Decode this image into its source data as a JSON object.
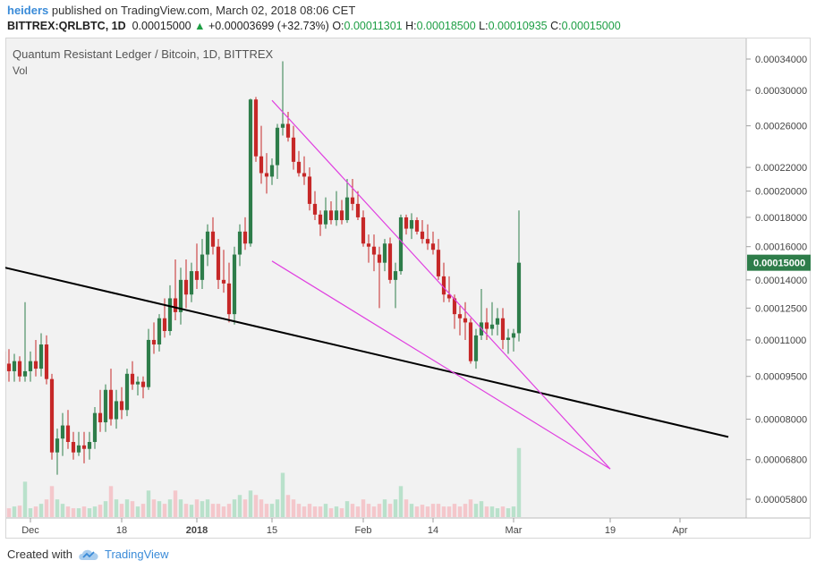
{
  "header": {
    "author": "heiders",
    "published_text": " published on TradingView.com, March 02, 2018 08:06 CET",
    "symbol": "BITTREX:QRLBTC, 1D",
    "last": "0.00015000",
    "arrow": "▲",
    "change": "+0.00003699 (+32.73%)",
    "o_label": "O:",
    "o_value": "0.00011301",
    "h_label": "H:",
    "h_value": "0.00018500",
    "l_label": "L:",
    "l_value": "0.00010935",
    "c_label": "C:",
    "c_value": "0.00015000"
  },
  "chart_data": {
    "type": "candlestick",
    "title": "Quantum Resistant Ledger / Bitcoin, 1D, BITTREX",
    "volume_label": "Vol",
    "y_ticks": [
      "0.00034000",
      "0.00030000",
      "0.00026000",
      "0.00022000",
      "0.00020000",
      "0.00018000",
      "0.00016000",
      "0.00014000",
      "0.00012500",
      "0.00011000",
      "0.00009500",
      "0.00008000",
      "0.00006800",
      "0.00005800"
    ],
    "last_price_label": "0.00015000",
    "x_ticks": [
      "Dec",
      "18",
      "2018",
      "15",
      "Feb",
      "14",
      "Mar",
      "19",
      "Apr"
    ],
    "x_dates": [
      "2017-12-01",
      "2017-12-18",
      "2018-01-01",
      "2018-01-15",
      "2018-02-01",
      "2018-02-14",
      "2018-03-01",
      "2018-03-19",
      "2018-04-01"
    ],
    "colors": {
      "up": "#2e7d4a",
      "down": "#c62828",
      "vol_up": "#b9e1cb",
      "vol_down": "#f4c7cb",
      "wedge": "#e040e0",
      "support": "#000000",
      "last_price_bg": "#2e7d4a"
    },
    "drawings": [
      {
        "name": "support-line",
        "points": [
          [
            "2017-11-25",
            0.000148
          ],
          [
            "2018-04-10",
            7.45e-05
          ]
        ]
      },
      {
        "name": "wedge-upper",
        "points": [
          [
            "2018-01-15",
            0.000288
          ],
          [
            "2018-03-19",
            6.55e-05
          ]
        ]
      },
      {
        "name": "wedge-lower",
        "points": [
          [
            "2018-01-15",
            0.000151
          ],
          [
            "2018-03-19",
            6.55e-05
          ]
        ]
      }
    ],
    "candles": [
      [
        "2017-11-24",
        0.000128,
        0.000128,
        0.00011,
        0.000115,
        25
      ],
      [
        "2017-11-25",
        0.000115,
        0.00012,
        0.0001,
        0.000105,
        15
      ],
      [
        "2017-11-26",
        0.000105,
        0.000112,
        9.7e-05,
        0.0001,
        12
      ],
      [
        "2017-11-27",
        0.0001,
        0.000106,
        9.3e-05,
        9.7e-05,
        10
      ],
      [
        "2017-11-28",
        9.7e-05,
        0.000104,
        9.3e-05,
        0.000101,
        12
      ],
      [
        "2017-11-29",
        0.000101,
        0.000103,
        9.3e-05,
        9.5e-05,
        13
      ],
      [
        "2017-11-30",
        9.5e-05,
        0.000128,
        9.3e-05,
        9.7e-05,
        40
      ],
      [
        "2017-12-01",
        9.7e-05,
        0.000105,
        9.3e-05,
        0.000101,
        10
      ],
      [
        "2017-12-02",
        0.000101,
        0.00011,
        9.5e-05,
        9.8e-05,
        12
      ],
      [
        "2017-12-03",
        9.8e-05,
        0.000113,
        9.5e-05,
        0.000108,
        15
      ],
      [
        "2017-12-04",
        0.000108,
        0.000112,
        9.2e-05,
        9.4e-05,
        20
      ],
      [
        "2017-12-05",
        9.4e-05,
        9.6e-05,
        6.8e-05,
        7e-05,
        35
      ],
      [
        "2017-12-06",
        7e-05,
        7.7e-05,
        6.4e-05,
        7.4e-05,
        20
      ],
      [
        "2017-12-07",
        7.4e-05,
        8.2e-05,
        6.9e-05,
        7.8e-05,
        15
      ],
      [
        "2017-12-08",
        7.8e-05,
        8.3e-05,
        7.1e-05,
        7.3e-05,
        12
      ],
      [
        "2017-12-09",
        7.3e-05,
        7.6e-05,
        6.8e-05,
        7e-05,
        10
      ],
      [
        "2017-12-10",
        7e-05,
        7.6e-05,
        6.9e-05,
        7.2e-05,
        10
      ],
      [
        "2017-12-11",
        7.2e-05,
        7.6e-05,
        6.7e-05,
        7.1e-05,
        12
      ],
      [
        "2017-12-12",
        7.1e-05,
        7.6e-05,
        6.8e-05,
        7.3e-05,
        10
      ],
      [
        "2017-12-13",
        7.3e-05,
        8.4e-05,
        7.1e-05,
        8.2e-05,
        12
      ],
      [
        "2017-12-14",
        8.2e-05,
        9e-05,
        7.6e-05,
        7.9e-05,
        14
      ],
      [
        "2017-12-15",
        7.9e-05,
        9.2e-05,
        7.6e-05,
        9e-05,
        18
      ],
      [
        "2017-12-16",
        9e-05,
        9.8e-05,
        7.8e-05,
        8e-05,
        35
      ],
      [
        "2017-12-17",
        8e-05,
        9e-05,
        7.7e-05,
        8.6e-05,
        20
      ],
      [
        "2017-12-18",
        8.6e-05,
        9.1e-05,
        8e-05,
        8.3e-05,
        15
      ],
      [
        "2017-12-19",
        8.3e-05,
        9.8e-05,
        8.1e-05,
        9.6e-05,
        20
      ],
      [
        "2017-12-20",
        9.6e-05,
        0.000101,
        9e-05,
        9.2e-05,
        18
      ],
      [
        "2017-12-21",
        9.2e-05,
        9.5e-05,
        8.8e-05,
        9.3e-05,
        12
      ],
      [
        "2017-12-22",
        9.3e-05,
        9.5e-05,
        8.7e-05,
        9.1e-05,
        15
      ],
      [
        "2017-12-23",
        9.1e-05,
        0.000115,
        9e-05,
        0.00011,
        30
      ],
      [
        "2017-12-24",
        0.00011,
        0.000118,
        0.000104,
        0.000108,
        20
      ],
      [
        "2017-12-25",
        0.000108,
        0.000122,
        0.000105,
        0.00012,
        18
      ],
      [
        "2017-12-26",
        0.00012,
        0.00013,
        0.000111,
        0.000114,
        15
      ],
      [
        "2017-12-27",
        0.000114,
        0.000137,
        0.000112,
        0.00013,
        20
      ],
      [
        "2017-12-28",
        0.00013,
        0.000152,
        0.000119,
        0.000123,
        30
      ],
      [
        "2017-12-29",
        0.000123,
        0.000147,
        0.000117,
        0.00014,
        20
      ],
      [
        "2017-12-30",
        0.00014,
        0.000152,
        0.000125,
        0.000132,
        15
      ],
      [
        "2017-12-31",
        0.000132,
        0.00015,
        0.000128,
        0.000145,
        14
      ],
      [
        "2018-01-01",
        0.000145,
        0.000162,
        0.000135,
        0.00014,
        20
      ],
      [
        "2018-01-02",
        0.00014,
        0.000165,
        0.000135,
        0.000155,
        18
      ],
      [
        "2018-01-03",
        0.000155,
        0.000175,
        0.000148,
        0.00017,
        20
      ],
      [
        "2018-01-04",
        0.00017,
        0.00018,
        0.000155,
        0.00016,
        15
      ],
      [
        "2018-01-05",
        0.00016,
        0.000165,
        0.000135,
        0.00014,
        15
      ],
      [
        "2018-01-06",
        0.00014,
        0.000158,
        0.000133,
        0.000138,
        12
      ],
      [
        "2018-01-07",
        0.000138,
        0.00015,
        0.000118,
        0.000122,
        15
      ],
      [
        "2018-01-08",
        0.000122,
        0.00016,
        0.000117,
        0.000155,
        20
      ],
      [
        "2018-01-09",
        0.000155,
        0.000175,
        0.000148,
        0.00017,
        25
      ],
      [
        "2018-01-10",
        0.00017,
        0.00018,
        0.000158,
        0.000162,
        20
      ],
      [
        "2018-01-11",
        0.000162,
        0.00029,
        0.00016,
        0.000289,
        30
      ],
      [
        "2018-01-12",
        0.000289,
        0.000292,
        0.000225,
        0.00023,
        25
      ],
      [
        "2018-01-13",
        0.00023,
        0.00026,
        0.000206,
        0.000215,
        20
      ],
      [
        "2018-01-14",
        0.000215,
        0.000233,
        0.000198,
        0.000212,
        15
      ],
      [
        "2018-01-15",
        0.000212,
        0.000228,
        0.000205,
        0.000222,
        15
      ],
      [
        "2018-01-16",
        0.000222,
        0.000262,
        0.00021,
        0.000258,
        20
      ],
      [
        "2018-01-17",
        0.000258,
        0.000337,
        0.00025,
        0.000262,
        50
      ],
      [
        "2018-01-18",
        0.000262,
        0.000275,
        0.000244,
        0.000248,
        25
      ],
      [
        "2018-01-19",
        0.000248,
        0.00026,
        0.000218,
        0.000225,
        20
      ],
      [
        "2018-01-20",
        0.000225,
        0.000235,
        0.000212,
        0.000215,
        15
      ],
      [
        "2018-01-21",
        0.000215,
        0.00023,
        0.000205,
        0.000212,
        12
      ],
      [
        "2018-01-22",
        0.000212,
        0.00022,
        0.000185,
        0.00019,
        15
      ],
      [
        "2018-01-23",
        0.00019,
        0.0002,
        0.000178,
        0.000182,
        12
      ],
      [
        "2018-01-24",
        0.000182,
        0.000185,
        0.000167,
        0.000175,
        12
      ],
      [
        "2018-01-25",
        0.000175,
        0.000195,
        0.000172,
        0.000185,
        15
      ],
      [
        "2018-01-26",
        0.000185,
        0.000192,
        0.000175,
        0.000178,
        10
      ],
      [
        "2018-01-27",
        0.000178,
        0.0002,
        0.000174,
        0.000185,
        12
      ],
      [
        "2018-01-28",
        0.000185,
        0.000193,
        0.000175,
        0.000178,
        10
      ],
      [
        "2018-01-29",
        0.000178,
        0.00021,
        0.000176,
        0.000195,
        18
      ],
      [
        "2018-01-30",
        0.000195,
        0.00021,
        0.000185,
        0.00019,
        15
      ],
      [
        "2018-01-31",
        0.00019,
        0.0002,
        0.000178,
        0.00018,
        12
      ],
      [
        "2018-02-01",
        0.00018,
        0.000185,
        0.00016,
        0.000162,
        20
      ],
      [
        "2018-02-02",
        0.000162,
        0.000168,
        0.00015,
        0.00016,
        15
      ],
      [
        "2018-02-03",
        0.00016,
        0.000168,
        0.000145,
        0.000155,
        12
      ],
      [
        "2018-02-04",
        0.000155,
        0.00016,
        0.000125,
        0.00015,
        15
      ],
      [
        "2018-02-05",
        0.00015,
        0.000165,
        0.000145,
        0.000162,
        20
      ],
      [
        "2018-02-06",
        0.000162,
        0.000166,
        0.000138,
        0.00014,
        15
      ],
      [
        "2018-02-07",
        0.00014,
        0.00015,
        0.000125,
        0.000145,
        20
      ],
      [
        "2018-02-08",
        0.000145,
        0.000182,
        0.000143,
        0.00018,
        35
      ],
      [
        "2018-02-09",
        0.00018,
        0.000182,
        0.000168,
        0.000172,
        20
      ],
      [
        "2018-02-10",
        0.000172,
        0.000183,
        0.000165,
        0.000178,
        15
      ],
      [
        "2018-02-11",
        0.000178,
        0.00018,
        0.000168,
        0.00017,
        12
      ],
      [
        "2018-02-12",
        0.00017,
        0.000178,
        0.000162,
        0.000165,
        14
      ],
      [
        "2018-02-13",
        0.000165,
        0.000175,
        0.000158,
        0.000162,
        12
      ],
      [
        "2018-02-14",
        0.000162,
        0.00017,
        0.000155,
        0.000158,
        15
      ],
      [
        "2018-02-15",
        0.000158,
        0.000165,
        0.00014,
        0.000142,
        15
      ],
      [
        "2018-02-16",
        0.000142,
        0.00015,
        0.000128,
        0.000132,
        12
      ],
      [
        "2018-02-17",
        0.000132,
        0.000142,
        0.000128,
        0.00013,
        12
      ],
      [
        "2018-02-18",
        0.00013,
        0.000132,
        0.000115,
        0.000122,
        15
      ],
      [
        "2018-02-19",
        0.000122,
        0.000126,
        0.000112,
        0.00012,
        12
      ],
      [
        "2018-02-20",
        0.00012,
        0.000128,
        0.00011,
        0.000118,
        15
      ],
      [
        "2018-02-21",
        0.000118,
        0.00012,
        0.0001,
        0.000101,
        20
      ],
      [
        "2018-02-22",
        0.000101,
        0.000115,
        9.8e-05,
        0.000112,
        15
      ],
      [
        "2018-02-23",
        0.000112,
        0.000135,
        0.00011,
        0.000118,
        18
      ],
      [
        "2018-02-24",
        0.000118,
        0.000125,
        0.00011,
        0.000115,
        12
      ],
      [
        "2018-02-25",
        0.000115,
        0.000128,
        0.000112,
        0.000117,
        12
      ],
      [
        "2018-02-26",
        0.000117,
        0.000125,
        0.000112,
        0.00012,
        10
      ],
      [
        "2018-02-27",
        0.00012,
        0.000125,
        0.000106,
        0.00011,
        12
      ],
      [
        "2018-02-28",
        0.00011,
        0.000115,
        0.000104,
        0.000111,
        10
      ],
      [
        "2018-03-01",
        0.000111,
        0.000115,
        0.000105,
        0.000113,
        12
      ],
      [
        "2018-03-02",
        0.00011301,
        0.000185,
        0.00010935,
        0.00015,
        78
      ]
    ]
  },
  "footer": {
    "created_with": "Created with",
    "brand": "TradingView"
  }
}
